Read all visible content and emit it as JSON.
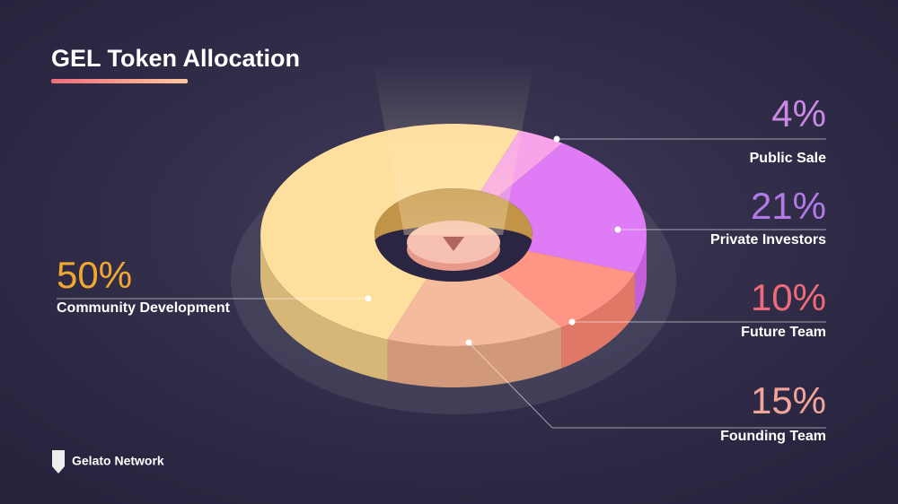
{
  "chart_data": {
    "type": "pie",
    "title": "GEL Token Allocation",
    "categories": [
      "Public Sale",
      "Private Investors",
      "Future Team",
      "Founding Team",
      "Community Development"
    ],
    "values": [
      4,
      21,
      10,
      15,
      50
    ],
    "value_labels": [
      "4%",
      "21%",
      "10%",
      "15%",
      "50%"
    ],
    "colors": [
      "#f8a3ea",
      "#e07bf6",
      "#ff9685",
      "#f5bb9c",
      "#ffdf9e"
    ],
    "label_colors": [
      "#c98ae6",
      "#b27ae8",
      "#f06b7a",
      "#f2a59a",
      "#f0a830"
    ]
  },
  "brand": "Gelato Network"
}
